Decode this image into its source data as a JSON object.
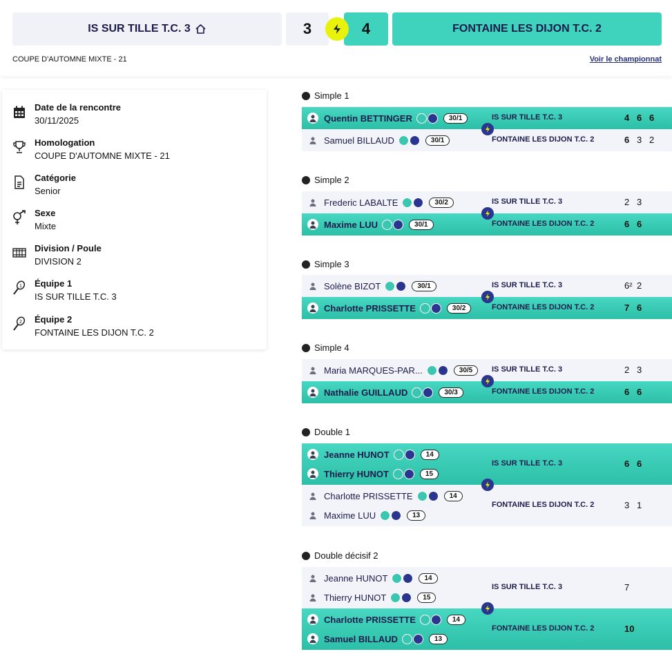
{
  "header": {
    "home_team": "IS SUR TILLE T.C. 3",
    "away_team": "FONTAINE LES DIJON T.C. 2",
    "home_score": "3",
    "away_score": "4",
    "competition": "COUPE D'AUTOMNE MIXTE - 21",
    "championship_link": "Voir le championnat",
    "colors": {
      "accent": "#3fd2bd",
      "bolt": "#e9f20a",
      "navy": "#2a3590"
    }
  },
  "info": [
    {
      "icon": "calendar-icon",
      "label": "Date de la rencontre",
      "value": "30/11/2025"
    },
    {
      "icon": "trophy-icon",
      "label": "Homologation",
      "value": "COUPE D'AUTOMNE MIXTE - 21"
    },
    {
      "icon": "document-icon",
      "label": "Catégorie",
      "value": "Senior"
    },
    {
      "icon": "gender-icon",
      "label": "Sexe",
      "value": "Mixte"
    },
    {
      "icon": "court-icon",
      "label": "Division / Poule",
      "value": "DIVISION 2"
    },
    {
      "icon": "racket-1-icon",
      "label": "Équipe 1",
      "value": "IS SUR TILLE T.C. 3"
    },
    {
      "icon": "racket-2-icon",
      "label": "Équipe 2",
      "value": "FONTAINE LES DIJON T.C. 2"
    }
  ],
  "matches": [
    {
      "title": "Simple 1",
      "home": {
        "club": "IS SUR TILLE T.C. 3",
        "players": [
          {
            "name": "Quentin BETTINGER",
            "rank": "30/1",
            "badges": 1
          }
        ],
        "scores": [
          "4",
          "6",
          "6"
        ],
        "win": true
      },
      "away": {
        "club": "FONTAINE LES DIJON T.C. 2",
        "players": [
          {
            "name": "Samuel BILLAUD",
            "rank": "30/1",
            "badges": 2
          }
        ],
        "scores": [
          "6",
          "3",
          "2"
        ],
        "win": false
      }
    },
    {
      "title": "Simple 2",
      "home": {
        "club": "IS SUR TILLE T.C. 3",
        "players": [
          {
            "name": "Frederic LABALTE",
            "rank": "30/2",
            "badges": 2
          }
        ],
        "scores": [
          "2",
          "3"
        ],
        "win": false
      },
      "away": {
        "club": "FONTAINE LES DIJON T.C. 2",
        "players": [
          {
            "name": "Maxime LUU",
            "rank": "30/1",
            "badges": 2
          }
        ],
        "scores": [
          "6",
          "6"
        ],
        "win": true
      }
    },
    {
      "title": "Simple 3",
      "home": {
        "club": "IS SUR TILLE T.C. 3",
        "players": [
          {
            "name": "Solène BIZOT",
            "rank": "30/1",
            "badges": 2
          }
        ],
        "scores": [
          "6²",
          "2"
        ],
        "win": false
      },
      "away": {
        "club": "FONTAINE LES DIJON T.C. 2",
        "players": [
          {
            "name": "Charlotte PRISSETTE",
            "rank": "30/2",
            "badges": 2
          }
        ],
        "scores": [
          "7",
          "6"
        ],
        "win": true
      }
    },
    {
      "title": "Simple 4",
      "home": {
        "club": "IS SUR TILLE T.C. 3",
        "players": [
          {
            "name": "Maria MARQUES-PAR...",
            "rank": "30/5",
            "badges": 2
          }
        ],
        "scores": [
          "2",
          "3"
        ],
        "win": false
      },
      "away": {
        "club": "FONTAINE LES DIJON T.C. 2",
        "players": [
          {
            "name": "Nathalie GUILLAUD",
            "rank": "30/3",
            "badges": 2
          }
        ],
        "scores": [
          "6",
          "6"
        ],
        "win": true
      }
    },
    {
      "title": "Double 1",
      "home": {
        "club": "IS SUR TILLE T.C. 3",
        "players": [
          {
            "name": "Jeanne HUNOT",
            "rank": "14",
            "badges": 2
          },
          {
            "name": "Thierry HUNOT",
            "rank": "15",
            "badges": 2
          }
        ],
        "scores": [
          "6",
          "6"
        ],
        "win": true
      },
      "away": {
        "club": "FONTAINE LES DIJON T.C. 2",
        "players": [
          {
            "name": "Charlotte PRISSETTE",
            "rank": "14",
            "badges": 2
          },
          {
            "name": "Maxime LUU",
            "rank": "13",
            "badges": 2
          }
        ],
        "scores": [
          "3",
          "1"
        ],
        "win": false
      }
    },
    {
      "title": "Double décisif 2",
      "home": {
        "club": "IS SUR TILLE T.C. 3",
        "players": [
          {
            "name": "Jeanne HUNOT",
            "rank": "14",
            "badges": 2
          },
          {
            "name": "Thierry HUNOT",
            "rank": "15",
            "badges": 2
          }
        ],
        "scores": [
          "7"
        ],
        "win": false
      },
      "away": {
        "club": "FONTAINE LES DIJON T.C. 2",
        "players": [
          {
            "name": "Charlotte PRISSETTE",
            "rank": "14",
            "badges": 2
          },
          {
            "name": "Samuel BILLAUD",
            "rank": "13",
            "badges": 2
          }
        ],
        "scores": [
          "10"
        ],
        "win": true
      }
    }
  ]
}
